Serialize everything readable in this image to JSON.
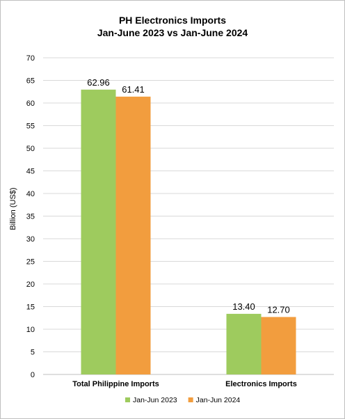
{
  "chart_data": {
    "type": "bar",
    "title": [
      "PH Electronics Imports",
      "Jan-June 2023 vs Jan-June 2024"
    ],
    "ylabel": "Billion (US$)",
    "xlabel": "",
    "categories": [
      "Total Philippine Imports",
      "Electronics Imports"
    ],
    "series": [
      {
        "name": "Jan-Jun 2023",
        "color": "#9ecb5e",
        "values": [
          62.96,
          13.4
        ],
        "labels": [
          "62.96",
          "13.40"
        ]
      },
      {
        "name": "Jan-Jun 2024",
        "color": "#f29d3e",
        "values": [
          61.41,
          12.7
        ],
        "labels": [
          "61.41",
          "12.70"
        ]
      }
    ],
    "ylim": [
      0,
      70
    ],
    "yticks": [
      0,
      5,
      10,
      15,
      20,
      25,
      30,
      35,
      40,
      45,
      50,
      55,
      60,
      65,
      70
    ],
    "grid": true,
    "legend": "bottom"
  }
}
